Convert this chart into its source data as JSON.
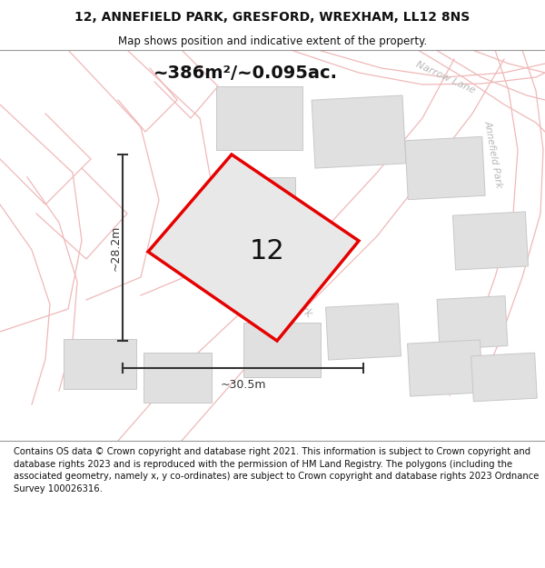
{
  "title_line1": "12, ANNEFIELD PARK, GRESFORD, WREXHAM, LL12 8NS",
  "title_line2": "Map shows position and indicative extent of the property.",
  "area_label": "~386m²/~0.095ac.",
  "width_label": "~30.5m",
  "height_label": "~28.2m",
  "plot_number": "12",
  "footer_text": "Contains OS data © Crown copyright and database right 2021. This information is subject to Crown copyright and database rights 2023 and is reproduced with the permission of HM Land Registry. The polygons (including the associated geometry, namely x, y co-ordinates) are subject to Crown copyright and database rights 2023 Ordnance Survey 100026316.",
  "bg_color": "#ffffff",
  "map_bg": "#ffffff",
  "plot_fill": "#e8e8e8",
  "plot_edge": "#e60000",
  "building_fill": "#e0e0e0",
  "building_edge": "#c8c8c8",
  "parcel_line_color": "#f0b8b8",
  "road_label_color": "#b8b8b8",
  "dim_line_color": "#333333",
  "title_color": "#111111",
  "number_color": "#111111",
  "footer_color": "#111111",
  "title_fontsize": 10,
  "subtitle_fontsize": 8.5,
  "area_fontsize": 14,
  "dim_fontsize": 9,
  "number_fontsize": 22,
  "footer_fontsize": 7.2
}
